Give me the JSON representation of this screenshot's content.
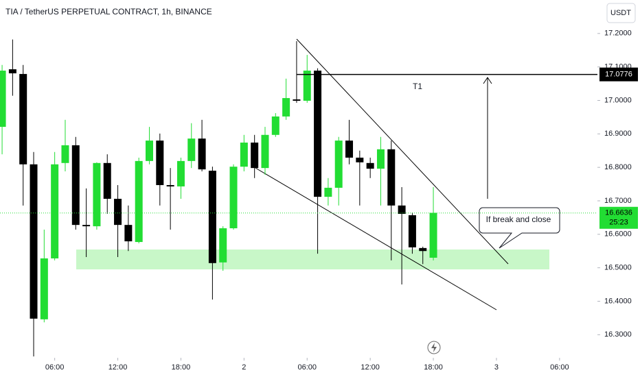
{
  "chart_data": {
    "type": "candlestick",
    "title": "TIA / TetherUS PERPETUAL CONTRACT, 1h, BINANCE",
    "currency": "USDT",
    "up_color": "#22dd33",
    "down_color": "#000000",
    "x": [
      1,
      2,
      3,
      4,
      5,
      6,
      7,
      8,
      9,
      10,
      11,
      12,
      13,
      14,
      15,
      16,
      17,
      18,
      19,
      20,
      21,
      22,
      23,
      24,
      25,
      26,
      27,
      28,
      29,
      30,
      31,
      32,
      33,
      34,
      35,
      36,
      37,
      38,
      39,
      40,
      41,
      42
    ],
    "open": [
      16.921,
      17.093,
      17.079,
      16.809,
      16.346,
      16.528,
      16.813,
      16.866,
      16.628,
      16.624,
      16.813,
      16.706,
      16.628,
      16.577,
      16.819,
      16.88,
      16.747,
      16.743,
      16.819,
      16.886,
      16.79,
      16.516,
      16.618,
      16.802,
      16.874,
      16.798,
      16.897,
      16.952,
      17.003,
      16.999,
      17.089,
      16.712,
      16.739,
      16.88,
      16.829,
      16.813,
      16.796,
      16.854,
      16.686,
      16.657,
      16.559,
      16.53
    ],
    "high": [
      17.106,
      17.182,
      17.106,
      16.846,
      16.614,
      16.846,
      16.942,
      16.891,
      16.737,
      16.815,
      16.839,
      16.747,
      16.686,
      16.829,
      16.921,
      16.901,
      16.798,
      16.829,
      16.932,
      16.942,
      16.802,
      16.624,
      16.809,
      16.897,
      16.897,
      16.921,
      16.962,
      17.065,
      17.177,
      17.136,
      17.096,
      16.768,
      16.891,
      16.942,
      16.85,
      16.829,
      16.891,
      16.88,
      16.741,
      16.665,
      16.563,
      16.741
    ],
    "low": [
      16.839,
      17.014,
      16.686,
      16.235,
      16.337,
      16.522,
      16.788,
      16.614,
      16.532,
      16.614,
      16.661,
      16.532,
      16.55,
      16.573,
      16.809,
      16.686,
      16.614,
      16.706,
      16.798,
      16.788,
      16.405,
      16.491,
      16.614,
      16.788,
      16.768,
      16.778,
      16.891,
      16.942,
      16.993,
      16.993,
      16.542,
      16.686,
      16.686,
      16.809,
      16.686,
      16.768,
      16.686,
      16.522,
      16.45,
      16.542,
      16.511,
      16.522
    ],
    "close": [
      17.089,
      17.081,
      16.809,
      16.348,
      16.528,
      16.809,
      16.866,
      16.628,
      16.624,
      16.813,
      16.706,
      16.628,
      16.579,
      16.819,
      16.88,
      16.747,
      16.743,
      16.819,
      16.886,
      16.794,
      16.514,
      16.618,
      16.802,
      16.874,
      16.798,
      16.897,
      16.952,
      17.007,
      16.999,
      17.089,
      16.712,
      16.739,
      16.88,
      16.829,
      16.815,
      16.796,
      16.854,
      16.686,
      16.661,
      16.561,
      16.55,
      16.664
    ],
    "xlim": [
      0.8,
      57.6
    ],
    "xticks": [
      {
        "value": 6,
        "label": "06:00"
      },
      {
        "value": 12,
        "label": "12:00"
      },
      {
        "value": 18,
        "label": "18:00"
      },
      {
        "value": 24,
        "label": "2"
      },
      {
        "value": 30,
        "label": "06:00"
      },
      {
        "value": 36,
        "label": "12:00"
      },
      {
        "value": 42,
        "label": "18:00"
      },
      {
        "value": 48,
        "label": "3"
      },
      {
        "value": 54,
        "label": "06:00"
      }
    ],
    "ylim": [
      16.231,
      17.3
    ],
    "yticks": [
      {
        "value": 16.3,
        "label": "16.3000"
      },
      {
        "value": 16.4,
        "label": "16.4000"
      },
      {
        "value": 16.5,
        "label": "16.5000"
      },
      {
        "value": 16.6,
        "label": "16.6000"
      },
      {
        "value": 16.7,
        "label": "16.7000"
      },
      {
        "value": 16.8,
        "label": "16.8000"
      },
      {
        "value": 16.9,
        "label": "16.9000"
      },
      {
        "value": 17.0,
        "label": "17.0000"
      },
      {
        "value": 17.1,
        "label": "17.1000"
      },
      {
        "value": 17.2,
        "label": "17.2000"
      }
    ],
    "target_line": 17.0776,
    "last_price": 16.6636,
    "countdown": "25:23",
    "annotations": [
      "T1",
      "If break and close"
    ]
  }
}
